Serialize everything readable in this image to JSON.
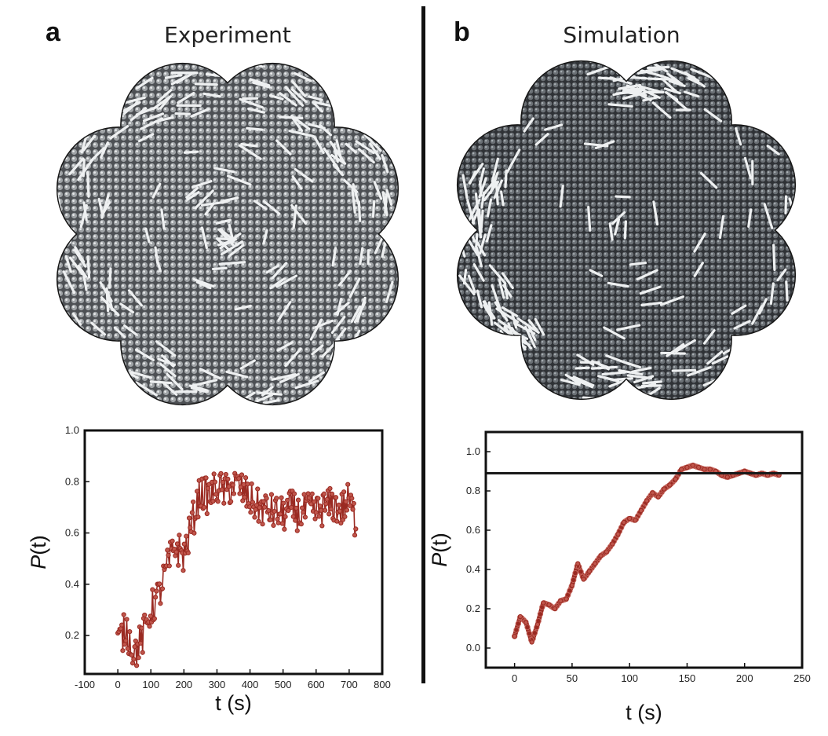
{
  "panels": {
    "a": {
      "letter": "a",
      "title": "Experiment"
    },
    "b": {
      "letter": "b",
      "title": "Simulation"
    }
  },
  "colors": {
    "series": "#9a2a22",
    "series_fill": "#c0564c",
    "disk": "#5a5d61",
    "disk_dark": "#3b3e42",
    "frame": "#111111",
    "refline": "#1a1a1a"
  },
  "chart_data": [
    {
      "type": "line",
      "panel": "a",
      "title": "Experiment",
      "xlabel": "t (s)",
      "ylabel_italic": "P",
      "ylabel_rest": "(t)",
      "xlim": [
        -100,
        800
      ],
      "ylim": [
        0.05,
        1.0
      ],
      "xticks": [
        -100,
        0,
        100,
        200,
        300,
        400,
        500,
        600,
        700,
        800
      ],
      "yticks": [
        0.2,
        0.4,
        0.6,
        0.8,
        1.0
      ],
      "ytick_labels": [
        "0.2",
        "0.4",
        "0.6",
        "0.8",
        "1.0"
      ],
      "series": [
        {
          "name": "P(t) experiment",
          "x": [
            0,
            25,
            50,
            75,
            100,
            125,
            150,
            175,
            200,
            225,
            250,
            275,
            300,
            325,
            350,
            375,
            400,
            425,
            450,
            475,
            500,
            525,
            550,
            575,
            600,
            625,
            650,
            675,
            700,
            720
          ],
          "y": [
            0.17,
            0.23,
            0.13,
            0.19,
            0.3,
            0.36,
            0.47,
            0.55,
            0.51,
            0.64,
            0.76,
            0.74,
            0.78,
            0.76,
            0.79,
            0.77,
            0.73,
            0.7,
            0.69,
            0.68,
            0.67,
            0.7,
            0.67,
            0.69,
            0.68,
            0.7,
            0.71,
            0.69,
            0.73,
            0.64
          ],
          "noise": 0.07
        }
      ]
    },
    {
      "type": "line",
      "panel": "b",
      "title": "Simulation",
      "xlabel": "t (s)",
      "ylabel_italic": "P",
      "ylabel_rest": "(t)",
      "xlim": [
        -25,
        250
      ],
      "ylim": [
        -0.1,
        1.1
      ],
      "xticks": [
        0,
        50,
        100,
        150,
        200,
        250
      ],
      "yticks": [
        0.0,
        0.2,
        0.4,
        0.6,
        0.8,
        1.0
      ],
      "ytick_labels": [
        "0.0",
        "0.2",
        "0.4",
        "0.6",
        "0.8",
        "1.0"
      ],
      "reference_line": 0.89,
      "series": [
        {
          "name": "P(t) simulation",
          "x": [
            0,
            5,
            10,
            15,
            20,
            25,
            30,
            35,
            40,
            45,
            50,
            55,
            60,
            65,
            70,
            75,
            80,
            85,
            90,
            95,
            100,
            105,
            110,
            115,
            120,
            125,
            130,
            135,
            140,
            145,
            150,
            155,
            160,
            165,
            170,
            175,
            180,
            185,
            190,
            195,
            200,
            205,
            210,
            215,
            220,
            225,
            230
          ],
          "y": [
            0.06,
            0.16,
            0.13,
            0.03,
            0.12,
            0.23,
            0.22,
            0.2,
            0.24,
            0.25,
            0.32,
            0.43,
            0.35,
            0.39,
            0.43,
            0.47,
            0.49,
            0.53,
            0.58,
            0.64,
            0.66,
            0.65,
            0.7,
            0.75,
            0.79,
            0.77,
            0.81,
            0.83,
            0.86,
            0.91,
            0.92,
            0.93,
            0.92,
            0.91,
            0.91,
            0.9,
            0.88,
            0.87,
            0.88,
            0.89,
            0.9,
            0.89,
            0.88,
            0.89,
            0.88,
            0.89,
            0.88
          ]
        }
      ]
    }
  ]
}
